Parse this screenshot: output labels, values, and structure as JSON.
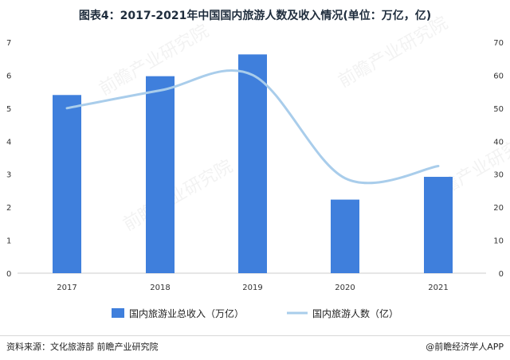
{
  "title": "图表4：2017-2021年中国国内旅游人数及收入情况(单位：万亿，亿)",
  "source_text": "资料来源：文化旅游部 前瞻产业研究院",
  "brand_text": "@前瞻经济学人APP",
  "watermark_text": "前瞻产业研究院",
  "colors": {
    "bar": "#3f7fdc",
    "line": "#a9cdeb",
    "axis": "#cccccc",
    "text": "#333333"
  },
  "chart_data": {
    "type": "bar+line",
    "title": "图表4：2017-2021年中国国内旅游人数及收入情况(单位：万亿，亿)",
    "categories": [
      "2017",
      "2018",
      "2019",
      "2020",
      "2021"
    ],
    "series": [
      {
        "name": "国内旅游业总收入（万亿）",
        "type": "bar",
        "axis": "left",
        "values": [
          5.4,
          5.97,
          6.63,
          2.23,
          2.92
        ]
      },
      {
        "name": "国内旅游人数（亿）",
        "type": "line",
        "axis": "right",
        "values": [
          50.01,
          55.39,
          60.06,
          28.79,
          32.46
        ]
      }
    ],
    "y_left": {
      "min": 0,
      "max": 7,
      "ticks": [
        "0",
        "1",
        "2",
        "3",
        "4",
        "5",
        "6",
        "7"
      ]
    },
    "y_right": {
      "min": 0,
      "max": 70,
      "ticks": [
        "0",
        "10",
        "20",
        "30",
        "40",
        "50",
        "60",
        "70"
      ]
    },
    "grid": false,
    "legend_position": "bottom"
  }
}
